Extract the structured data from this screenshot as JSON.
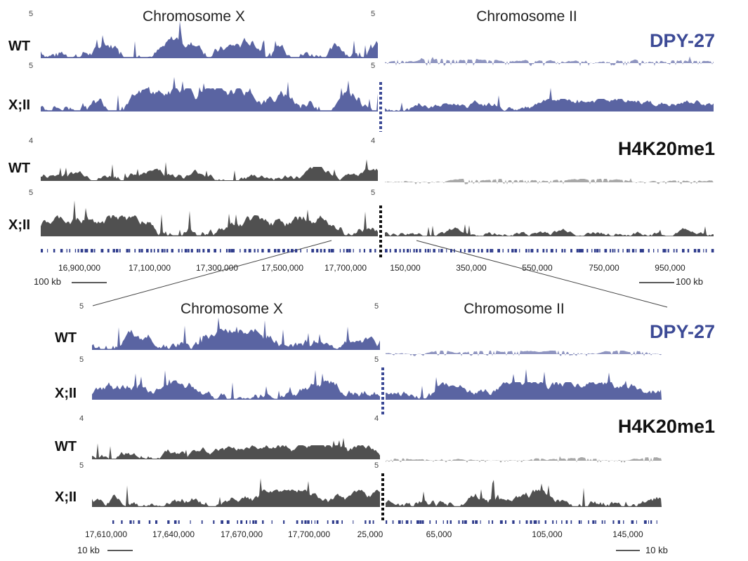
{
  "figure": {
    "colors": {
      "dpy27_fill": "#5a64a2",
      "dpy27_light": "#8f95c0",
      "h4_fill": "#505050",
      "h4_light": "#a8a8a8",
      "gene": "#2f3c8c",
      "title_blue": "#3c4a96"
    },
    "top": {
      "chrom_left": "Chromosome X",
      "chrom_right": "Chromosome II",
      "markers": [
        "DPY-27",
        "H4K20me1"
      ],
      "rows": [
        "WT",
        "X;II",
        "WT",
        "X;II"
      ],
      "scale_left": [
        "5",
        "5",
        "4",
        "5"
      ],
      "scale_right": [
        "5",
        "5",
        "4",
        "5"
      ],
      "coords_left": [
        "16,900,000",
        "17,100,000",
        "17,300,000",
        "17,500,000",
        "17,700,000"
      ],
      "coords_right": [
        "150,000",
        "350,000",
        "550,000",
        "750,000",
        "950,000"
      ],
      "scalebar_left": "100 kb",
      "scalebar_right": "100 kb"
    },
    "bottom": {
      "chrom_left": "Chromosome X",
      "chrom_right": "Chromosome II",
      "markers": [
        "DPY-27",
        "H4K20me1"
      ],
      "rows": [
        "WT",
        "X;II",
        "WT",
        "X;II"
      ],
      "scale_left": [
        "5",
        "5",
        "4",
        "5"
      ],
      "scale_right": [
        "5",
        "5",
        "4",
        "5"
      ],
      "coords_left": [
        "17,610,000",
        "17,640,000",
        "17,670,000",
        "17,700,000",
        "25,000"
      ],
      "coords_right": [
        "65,000",
        "105,000",
        "145,000"
      ],
      "scalebar_left": "10 kb",
      "scalebar_right": "10 kb"
    }
  }
}
